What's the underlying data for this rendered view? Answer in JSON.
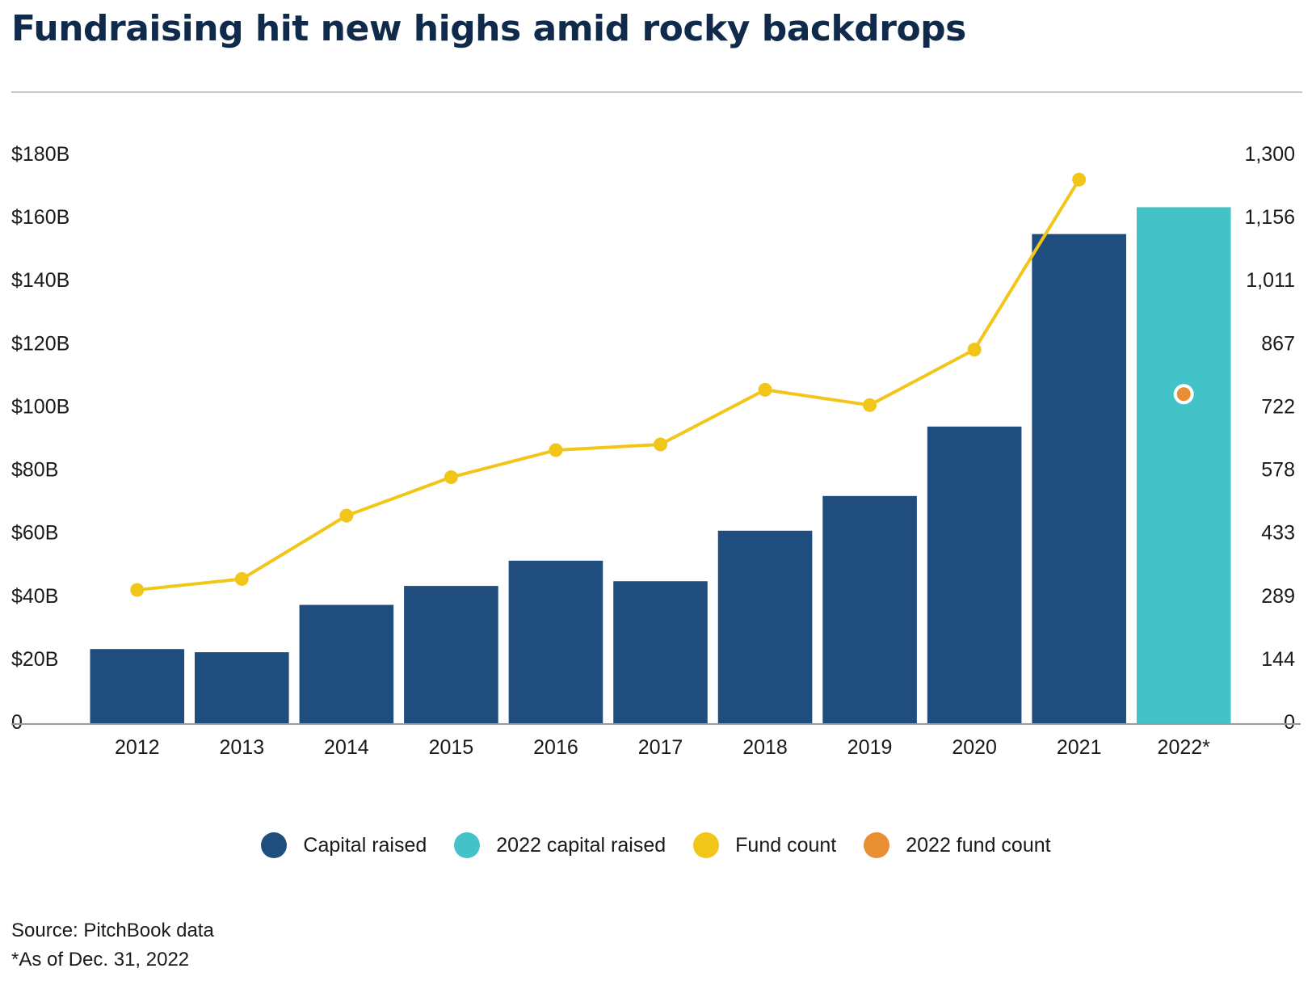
{
  "title": "Fundraising hit new highs amid rocky backdrops",
  "source": "Source: PitchBook data",
  "footnote": "*As of Dec. 31, 2022",
  "colors": {
    "capital": "#1f4e7e",
    "capital_2022": "#43c2c8",
    "fund_count": "#f2c619",
    "fund_count_2022": "#e88f34",
    "axis": "#999999"
  },
  "legend": [
    {
      "label": "Capital raised",
      "color": "#1f4e7e"
    },
    {
      "label": "2022 capital raised",
      "color": "#43c2c8"
    },
    {
      "label": "Fund count",
      "color": "#f2c619"
    },
    {
      "label": "2022 fund count",
      "color": "#e88f34"
    }
  ],
  "chart_data": {
    "type": "bar",
    "categories": [
      "2012",
      "2013",
      "2014",
      "2015",
      "2016",
      "2017",
      "2018",
      "2019",
      "2020",
      "2021",
      "2022*"
    ],
    "series": [
      {
        "name": "Capital raised",
        "type": "bar",
        "axis": "left",
        "values": [
          23.5,
          22.5,
          37.5,
          43.5,
          51.5,
          45.0,
          61.0,
          72.0,
          94.0,
          155.0,
          null
        ]
      },
      {
        "name": "2022 capital raised",
        "type": "bar",
        "axis": "left",
        "values": [
          null,
          null,
          null,
          null,
          null,
          null,
          null,
          null,
          null,
          null,
          163.5
        ]
      },
      {
        "name": "Fund count",
        "type": "line",
        "axis": "right",
        "values": [
          305,
          330,
          475,
          563,
          625,
          638,
          763,
          728,
          855,
          1244,
          null
        ]
      },
      {
        "name": "2022 fund count",
        "type": "point",
        "axis": "right",
        "values": [
          null,
          null,
          null,
          null,
          null,
          null,
          null,
          null,
          null,
          null,
          753
        ]
      }
    ],
    "y_left": {
      "min": 0,
      "max": 180,
      "ticks": [
        0,
        20,
        40,
        60,
        80,
        100,
        120,
        140,
        160,
        180
      ],
      "tick_labels": [
        "0",
        "$20B",
        "$40B",
        "$60B",
        "$80B",
        "$100B",
        "$120B",
        "$140B",
        "$160B",
        "$180B"
      ]
    },
    "y_right": {
      "min": 0,
      "max": 1300,
      "tick_labels": [
        "0",
        "144",
        "289",
        "433",
        "578",
        "722",
        "867",
        "1,011",
        "1,156",
        "1,300"
      ]
    },
    "grid": false,
    "legend_position": "bottom"
  }
}
